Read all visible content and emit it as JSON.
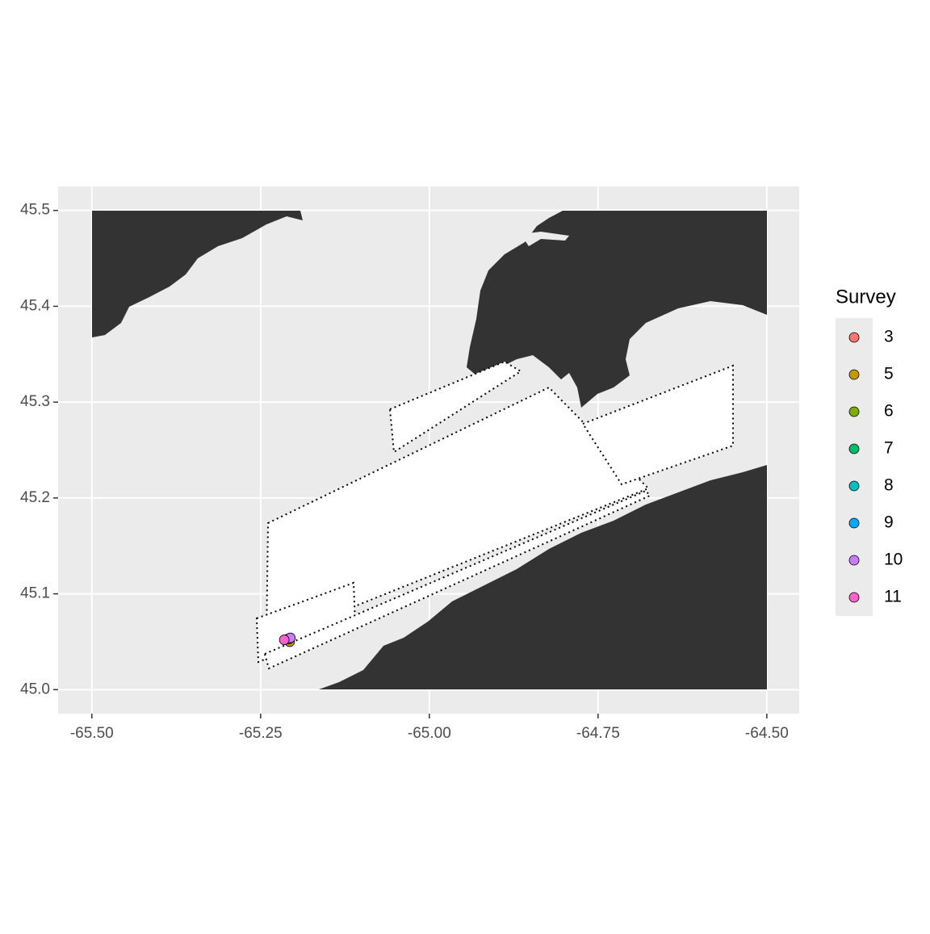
{
  "chart_data": {
    "type": "scatter",
    "legend_title": "Survey",
    "legend_position": "right",
    "grid": true,
    "xlim": [
      -65.55,
      -64.452
    ],
    "ylim": [
      44.975,
      45.525
    ],
    "xticks": [
      {
        "value": -65.5,
        "label": "-65.50"
      },
      {
        "value": -65.25,
        "label": "-65.25"
      },
      {
        "value": -65.0,
        "label": "-65.00"
      },
      {
        "value": -64.75,
        "label": "-64.75"
      },
      {
        "value": -64.5,
        "label": "-64.50"
      }
    ],
    "yticks": [
      {
        "value": 45.0,
        "label": "45.0"
      },
      45.1,
      45.2,
      45.3,
      45.4,
      {
        "value": 45.5,
        "label": "45.5"
      }
    ],
    "series": [
      {
        "name": "3",
        "color": "#F8766D",
        "x": [
          -65.209
        ],
        "values": [
          45.053
        ]
      },
      {
        "name": "5",
        "color": "#C49A00",
        "x": [
          -65.207
        ],
        "values": [
          45.05
        ]
      },
      {
        "name": "6",
        "color": "#7CAE00",
        "x": [
          -65.208
        ],
        "values": [
          45.053
        ]
      },
      {
        "name": "7",
        "color": "#00BE67",
        "x": [
          -65.209
        ],
        "values": [
          45.053
        ]
      },
      {
        "name": "8",
        "color": "#00BFC4",
        "x": [
          -65.208
        ],
        "values": [
          45.053
        ]
      },
      {
        "name": "9",
        "color": "#00A9FF",
        "x": [
          -65.208
        ],
        "values": [
          45.053
        ]
      },
      {
        "name": "10",
        "color": "#C77CFF",
        "x": [
          -65.206
        ],
        "values": [
          45.054
        ]
      },
      {
        "name": "11",
        "color": "#FF61CC",
        "x": [
          -65.215
        ],
        "values": [
          45.052
        ]
      }
    ]
  }
}
